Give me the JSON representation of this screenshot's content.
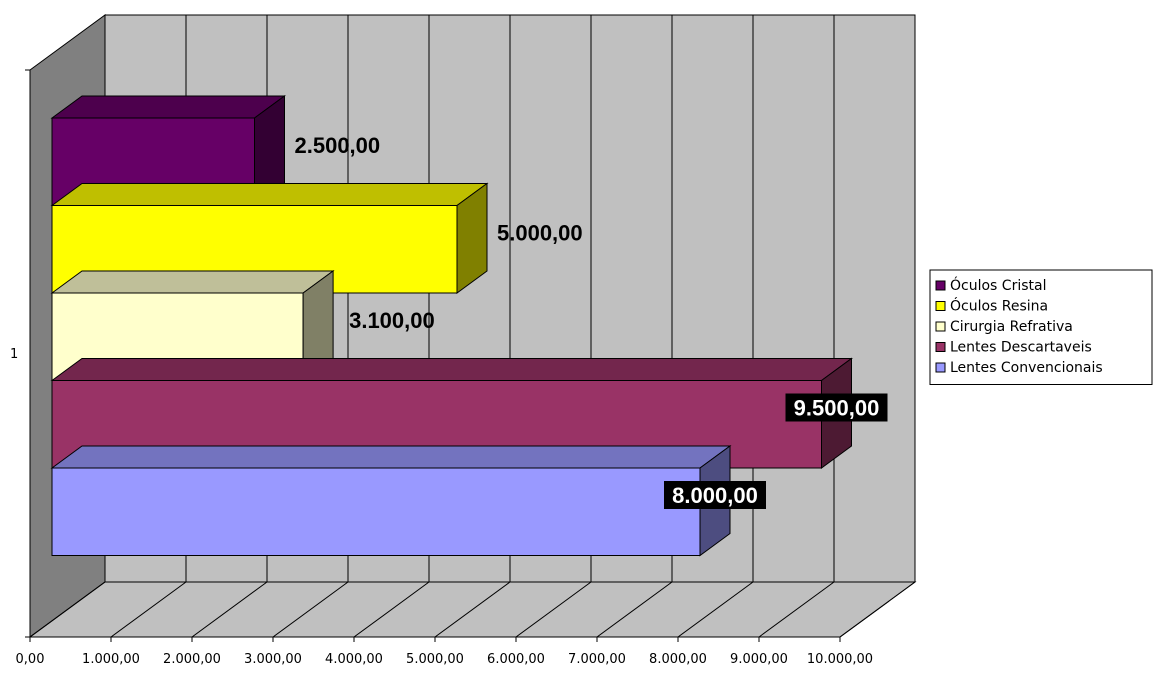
{
  "chart_data": {
    "type": "bar",
    "orientation": "horizontal",
    "style": "3d-clustered",
    "categories": [
      "1"
    ],
    "series": [
      {
        "name": "Óculos Cristal",
        "value": 2500,
        "label": "2.500,00",
        "color": "#660066"
      },
      {
        "name": "Óculos Resina",
        "value": 5000,
        "label": "5.000,00",
        "color": "#ffff00"
      },
      {
        "name": "Cirurgia Refrativa",
        "value": 3100,
        "label": "3.100,00",
        "color": "#ffffcc"
      },
      {
        "name": "Lentes Descartaveis",
        "value": 9500,
        "label": "9.500,00",
        "color": "#993366"
      },
      {
        "name": "Lentes Convencionais",
        "value": 8000,
        "label": "8.000,00",
        "color": "#9999ff"
      }
    ],
    "xlim": [
      0,
      10000
    ],
    "xticks": [
      "0,00",
      "1.000,00",
      "2.000,00",
      "3.000,00",
      "4.000,00",
      "5.000,00",
      "6.000,00",
      "7.000,00",
      "8.000,00",
      "9.000,00",
      "10.000,00"
    ],
    "title": "",
    "xlabel": "",
    "ylabel": "",
    "grid": true,
    "legend": "right",
    "wall_color": "#c0c0c0",
    "side_wall_color": "#808080"
  }
}
